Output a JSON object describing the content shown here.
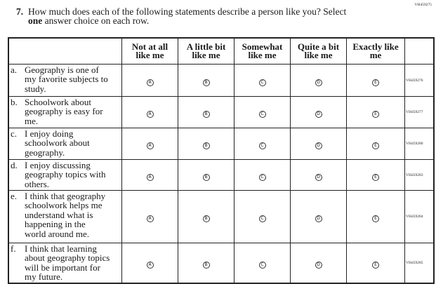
{
  "question_id": "VH459275",
  "question": {
    "number": "7.",
    "text_line1": "How much does each of the following statements describe a person like you? Select",
    "bold_word": "one",
    "text_line2_rest": " answer choice on each row."
  },
  "columns": [
    {
      "line1": "Not at all",
      "line2": "like me",
      "bubble": "A"
    },
    {
      "line1": "A little bit",
      "line2": "like me",
      "bubble": "B"
    },
    {
      "line1": "Somewhat",
      "line2": "like me",
      "bubble": "C"
    },
    {
      "line1": "Quite a bit",
      "line2": "like me",
      "bubble": "D"
    },
    {
      "line1": "Exactly like",
      "line2": "me",
      "bubble": "E"
    }
  ],
  "rows": [
    {
      "letter": "a.",
      "lines": [
        "Geography is one of",
        "my favorite subjects to",
        "study."
      ],
      "code": "VH459276"
    },
    {
      "letter": "b.",
      "lines": [
        "Schoolwork about",
        "geography is easy for",
        "me."
      ],
      "code": "VH459277"
    },
    {
      "letter": "c.",
      "lines": [
        "I enjoy doing",
        "schoolwork about",
        "geography."
      ],
      "code": "VH459280"
    },
    {
      "letter": "d.",
      "lines": [
        "I enjoy discussing",
        "geography topics with",
        "others."
      ],
      "code": "VH459283"
    },
    {
      "letter": "e.",
      "lines": [
        "I think that geography",
        "schoolwork helps me",
        "understand what is",
        "happening in the",
        "world around me."
      ],
      "code": "VH459284"
    },
    {
      "letter": "f.",
      "lines": [
        "I think that learning",
        "about geography topics",
        "will be important for",
        "my future."
      ],
      "code": "VH459285"
    }
  ]
}
